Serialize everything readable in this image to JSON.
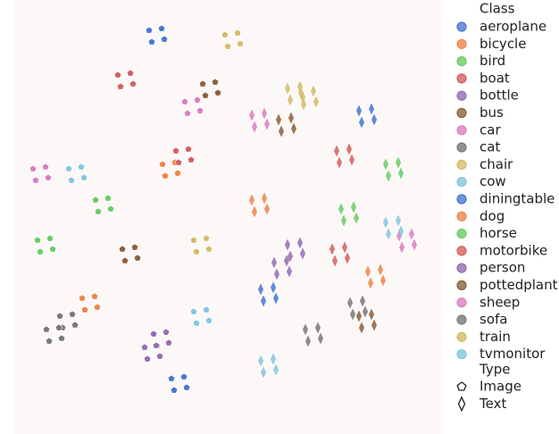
{
  "chart_data": {
    "type": "scatter",
    "legend_title": "Class",
    "marker_title": "Type",
    "xlim": [
      0,
      500
    ],
    "ylim": [
      0,
      486
    ],
    "markers": [
      {
        "name": "Image",
        "shape": "pentagon"
      },
      {
        "name": "Text",
        "shape": "diamond"
      }
    ],
    "series": [
      {
        "name": "aeroplane",
        "color": "#4878d0",
        "image": {
          "x": [
            167,
            181,
            170,
            184
          ],
          "y": [
            452,
            454,
            439,
            442
          ]
        },
        "text": {
          "x": [
            402,
            416,
            405,
            419
          ],
          "y": [
            362,
            364,
            349,
            352
          ]
        }
      },
      {
        "name": "bicycle",
        "color": "#ee854a",
        "image": {
          "x": [
            92,
            106,
            95,
            109
          ],
          "y": [
            152,
            154,
            139,
            142
          ]
        },
        "text": {
          "x": [
            282,
            296,
            285,
            299
          ],
          "y": [
            262,
            264,
            249,
            252
          ]
        }
      },
      {
        "name": "bird",
        "color": "#6acc64",
        "image": {
          "x": [
            107,
            121,
            110,
            124
          ],
          "y": [
            262,
            264,
            249,
            252
          ]
        },
        "text": {
          "x": [
            432,
            446,
            435,
            449
          ],
          "y": [
            302,
            304,
            289,
            292
          ]
        }
      },
      {
        "name": "boat",
        "color": "#d65f5f",
        "image": {
          "x": [
            132,
            146,
            135,
            149
          ],
          "y": [
            402,
            404,
            389,
            392
          ]
        },
        "text": {
          "x": [
            377,
            391,
            380,
            394
          ],
          "y": [
            317,
            319,
            304,
            307
          ]
        }
      },
      {
        "name": "bottle",
        "color": "#956cb4",
        "image": {
          "x": [
            162,
            176,
            165,
            179
          ],
          "y": [
            97,
            99,
            84,
            87
          ]
        },
        "text": {
          "x": [
            307,
            321,
            310,
            324
          ],
          "y": [
            192,
            194,
            179,
            182
          ]
        }
      },
      {
        "name": "bus",
        "color": "#8c613c",
        "image": {
          "x": [
            227,
            241,
            230,
            244
          ],
          "y": [
            392,
            394,
            379,
            382
          ]
        },
        "text": {
          "x": [
            312,
            326,
            315,
            329
          ],
          "y": [
            352,
            354,
            339,
            342
          ]
        }
      },
      {
        "name": "car",
        "color": "#dc7ec0",
        "image": {
          "x": [
            37,
            51,
            40,
            54
          ],
          "y": [
            297,
            299,
            284,
            287
          ]
        },
        "text": {
          "x": [
            447,
            461,
            450,
            464
          ],
          "y": [
            222,
            224,
            209,
            212
          ]
        }
      },
      {
        "name": "cat",
        "color": "#797979",
        "image": {
          "x": [
            67,
            81,
            70,
            84
          ],
          "y": [
            132,
            134,
            119,
            122
          ]
        },
        "text": {
          "x": [
            392,
            406,
            395,
            409
          ],
          "y": [
            147,
            149,
            134,
            137
          ]
        }
      },
      {
        "name": "chair",
        "color": "#d5bb67",
        "image": {
          "x": [
            252,
            266,
            255,
            269
          ],
          "y": [
            447,
            449,
            434,
            437
          ]
        },
        "text": {
          "x": [
            337,
            351,
            340,
            354
          ],
          "y": [
            382,
            384,
            369,
            372
          ]
        }
      },
      {
        "name": "cow",
        "color": "#82c6e2",
        "image": {
          "x": [
            77,
            91,
            80,
            94
          ],
          "y": [
            297,
            299,
            284,
            287
          ]
        },
        "text": {
          "x": [
            432,
            446,
            435,
            449
          ],
          "y": [
            237,
            239,
            224,
            227
          ]
        }
      },
      {
        "name": "diningtable",
        "color": "#4878d0",
        "image": {
          "x": [
            192,
            206,
            195,
            209
          ],
          "y": [
            62,
            64,
            49,
            52
          ]
        },
        "text": {
          "x": [
            292,
            306,
            295,
            309
          ],
          "y": [
            162,
            164,
            149,
            152
          ]
        }
      },
      {
        "name": "dog",
        "color": "#ee854a",
        "image": {
          "x": [
            182,
            196,
            185,
            199
          ],
          "y": [
            302,
            304,
            289,
            292
          ]
        },
        "text": {
          "x": [
            412,
            426,
            415,
            429
          ],
          "y": [
            182,
            184,
            169,
            172
          ]
        }
      },
      {
        "name": "horse",
        "color": "#6acc64",
        "image": {
          "x": [
            42,
            56,
            45,
            59
          ],
          "y": [
            217,
            219,
            204,
            207
          ]
        },
        "text": {
          "x": [
            382,
            396,
            385,
            399
          ],
          "y": [
            252,
            254,
            239,
            242
          ]
        }
      },
      {
        "name": "motorbike",
        "color": "#d65f5f",
        "image": {
          "x": [
            197,
            211,
            200,
            214
          ],
          "y": [
            317,
            319,
            304,
            307
          ]
        },
        "text": {
          "x": [
            372,
            386,
            375,
            389
          ],
          "y": [
            207,
            209,
            194,
            197
          ]
        }
      },
      {
        "name": "person",
        "color": "#956cb4",
        "image": {
          "x": [
            172,
            186,
            175,
            189
          ],
          "y": [
            112,
            114,
            99,
            102
          ]
        },
        "text": {
          "x": [
            322,
            336,
            325,
            339
          ],
          "y": [
            212,
            214,
            199,
            202
          ]
        }
      },
      {
        "name": "pottedplant",
        "color": "#8c613c",
        "image": {
          "x": [
            137,
            151,
            140,
            154
          ],
          "y": [
            207,
            209,
            194,
            197
          ]
        },
        "text": {
          "x": [
            402,
            416,
            405,
            419
          ],
          "y": [
            132,
            134,
            119,
            122
          ]
        }
      },
      {
        "name": "sheep",
        "color": "#dc7ec0",
        "image": {
          "x": [
            207,
            221,
            210,
            224
          ],
          "y": [
            372,
            374,
            359,
            362
          ]
        },
        "text": {
          "x": [
            282,
            296,
            285,
            299
          ],
          "y": [
            357,
            359,
            344,
            347
          ]
        }
      },
      {
        "name": "sofa",
        "color": "#797979",
        "image": {
          "x": [
            52,
            66,
            55,
            69
          ],
          "y": [
            117,
            119,
            104,
            107
          ]
        },
        "text": {
          "x": [
            342,
            356,
            345,
            359
          ],
          "y": [
            117,
            119,
            104,
            107
          ]
        }
      },
      {
        "name": "train",
        "color": "#d5bb67",
        "image": {
          "x": [
            217,
            231,
            220,
            234
          ],
          "y": [
            217,
            219,
            204,
            207
          ]
        },
        "text": {
          "x": [
            322,
            336,
            325,
            339
          ],
          "y": [
            387,
            389,
            374,
            377
          ]
        }
      },
      {
        "name": "tvmonitor",
        "color": "#82c6e2",
        "image": {
          "x": [
            217,
            231,
            220,
            234
          ],
          "y": [
            137,
            139,
            124,
            127
          ]
        },
        "text": {
          "x": [
            292,
            306,
            295,
            309
          ],
          "y": [
            82,
            84,
            69,
            72
          ]
        }
      }
    ]
  }
}
